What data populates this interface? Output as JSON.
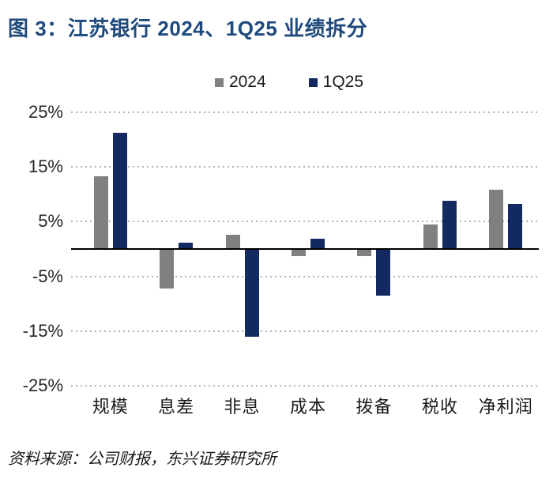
{
  "chart_data": {
    "type": "bar",
    "title": "图 3：江苏银行 2024、1Q25 业绩拆分",
    "title_color": "#1f4a7d",
    "categories": [
      "规模",
      "息差",
      "非息",
      "成本",
      "拨备",
      "税收",
      "净利润"
    ],
    "series": [
      {
        "name": "2024",
        "color": "#808080",
        "values": [
          13.2,
          -7.0,
          2.4,
          -1.2,
          -1.1,
          4.4,
          10.7
        ]
      },
      {
        "name": "1Q25",
        "color": "#132a60",
        "values": [
          21.0,
          1.0,
          -15.9,
          1.8,
          -8.3,
          8.6,
          8.1
        ]
      }
    ],
    "ylim": [
      -25,
      25
    ],
    "yticks": [
      {
        "label": "25%",
        "value": 25
      },
      {
        "label": "15%",
        "value": 15
      },
      {
        "label": "5%",
        "value": 5
      },
      {
        "label": "-5%",
        "value": -5
      },
      {
        "label": "-15%",
        "value": -15
      },
      {
        "label": "-25%",
        "value": -25
      }
    ],
    "grid": "horizontal-dotted",
    "grid_color": "#b3b3b3",
    "axis_color": "#000000",
    "tick_label_color": "#262626",
    "legend_position": "top-center",
    "source": "资料来源：公司财报，东兴证券研究所"
  }
}
